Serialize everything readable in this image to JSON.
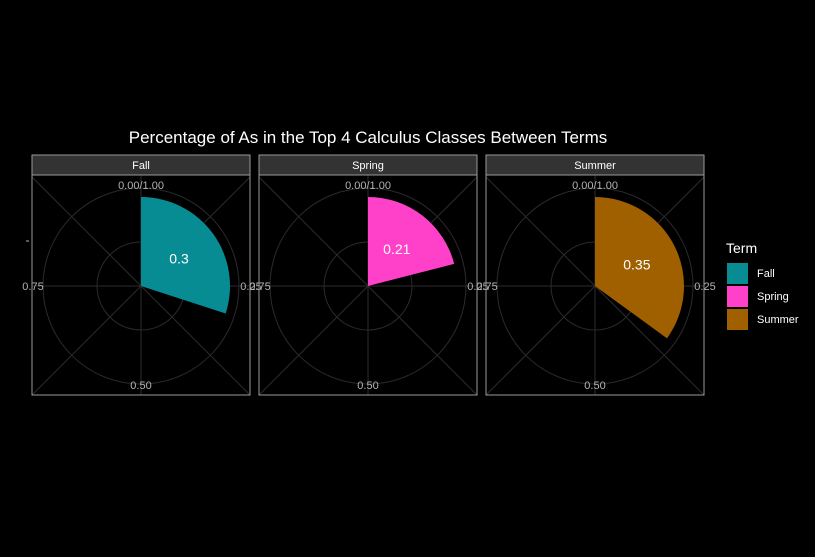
{
  "chart_data": {
    "type": "pie",
    "title": "Percentage of As in the Top 4 Calculus Classes Between Terms",
    "coord": "polar",
    "theta_range": [
      0,
      1
    ],
    "theta_ticks": [
      "0.00/1.00",
      "0.25",
      "0.50",
      "0.75"
    ],
    "grid": true,
    "facets": [
      {
        "name": "Fall",
        "value": 0.3,
        "label": "0.3",
        "color": "#088C93"
      },
      {
        "name": "Spring",
        "value": 0.21,
        "label": "0.21",
        "color": "#FF40C9"
      },
      {
        "name": "Summer",
        "value": 0.35,
        "label": "0.35",
        "color": "#A06000"
      }
    ],
    "legend": {
      "title": "Term",
      "position": "right",
      "entries": [
        "Fall",
        "Spring",
        "Summer"
      ]
    }
  }
}
